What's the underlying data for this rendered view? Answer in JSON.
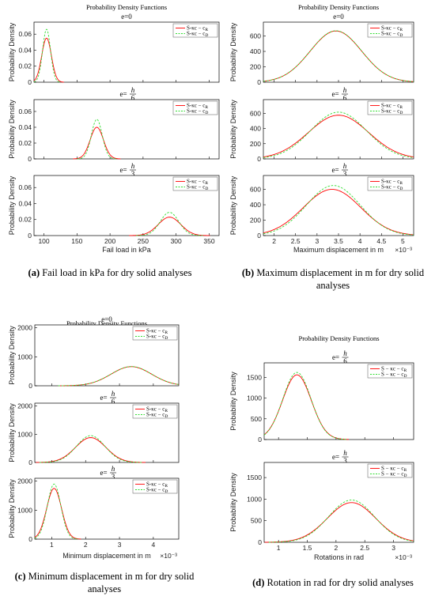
{
  "captions": [
    {
      "id": "a",
      "letter": "(a)",
      "text": "Fail load in kPa for dry solid analyses"
    },
    {
      "id": "b",
      "letter": "(b)",
      "text": "Maximum displacement in m for dry solid analyses"
    },
    {
      "id": "c",
      "letter": "(c)",
      "text": "Minimum displacement in m for dry solid analyses"
    },
    {
      "id": "d",
      "letter": "(d)",
      "text": "Rotation in rad for dry solid analyses"
    }
  ],
  "colors": {
    "series_solid": "#ff0000",
    "series_dashed": "#33dd33",
    "axis": "#000000"
  },
  "chart_data": [
    {
      "id": "a",
      "type": "line",
      "title": "Probability Density Functions",
      "xlabel": "Fail load in kPa",
      "ylabel": "Probability Density",
      "x_multiplier": "",
      "xlim": [
        85,
        365
      ],
      "xticks": [
        {
          "v": 100,
          "label": "100"
        },
        {
          "v": 150,
          "label": "150"
        },
        {
          "v": 200,
          "label": "200"
        },
        {
          "v": 250,
          "label": "250"
        },
        {
          "v": 300,
          "label": "300"
        },
        {
          "v": 350,
          "label": "350"
        }
      ],
      "legend": [
        "S-κc − c_R",
        "S-κc − c_D"
      ],
      "subplots": [
        {
          "subtitle": "e=0",
          "ylim": [
            0,
            0.075
          ],
          "yticks": [
            0,
            0.02,
            0.04,
            0.06
          ],
          "ytick_labels": [
            "0",
            "0.02",
            "0.04",
            "0.06"
          ],
          "series": [
            {
              "style": "solid",
              "gaussian": {
                "mean": 104,
                "sd": 7.3,
                "peak": 0.055
              }
            },
            {
              "style": "dashed",
              "gaussian": {
                "mean": 104,
                "sd": 6.0,
                "peak": 0.066
              }
            }
          ]
        },
        {
          "subtitle": "e=h/6",
          "ylim": [
            0,
            0.075
          ],
          "yticks": [
            0,
            0.02,
            0.04,
            0.06
          ],
          "ytick_labels": [
            "0",
            "0.02",
            "0.04",
            "0.06"
          ],
          "series": [
            {
              "style": "solid",
              "gaussian": {
                "mean": 180,
                "sd": 10,
                "peak": 0.04
              }
            },
            {
              "style": "dashed",
              "gaussian": {
                "mean": 180,
                "sd": 8.2,
                "peak": 0.05
              }
            }
          ]
        },
        {
          "subtitle": "e=h/3",
          "ylim": [
            0,
            0.075
          ],
          "yticks": [
            0,
            0.02,
            0.04,
            0.06
          ],
          "ytick_labels": [
            "0",
            "0.02",
            "0.04",
            "0.06"
          ],
          "series": [
            {
              "style": "solid",
              "gaussian": {
                "mean": 290,
                "sd": 17,
                "peak": 0.023
              }
            },
            {
              "style": "dashed",
              "gaussian": {
                "mean": 290,
                "sd": 14,
                "peak": 0.029
              }
            }
          ]
        }
      ]
    },
    {
      "id": "b",
      "type": "line",
      "title": "Probability Density Functions",
      "xlabel": "Maximum displacement in m",
      "ylabel": "Probability Density",
      "x_multiplier": "×10⁻³",
      "xlim": [
        1.75,
        5.25
      ],
      "xticks": [
        {
          "v": 2,
          "label": "2"
        },
        {
          "v": 2.5,
          "label": "2.5"
        },
        {
          "v": 3,
          "label": "3"
        },
        {
          "v": 3.5,
          "label": "3.5"
        },
        {
          "v": 4,
          "label": "4"
        },
        {
          "v": 4.5,
          "label": "4.5"
        },
        {
          "v": 5,
          "label": "5"
        }
      ],
      "legend": [
        "S-κc − c_R",
        "S-κc − c_D"
      ],
      "subplots": [
        {
          "subtitle": "e=0",
          "ylim": [
            0,
            780
          ],
          "yticks": [
            0,
            200,
            400,
            600
          ],
          "ytick_labels": [
            "0",
            "200",
            "400",
            "600"
          ],
          "series": [
            {
              "style": "solid",
              "gaussian": {
                "mean": 3.44,
                "sd": 0.6,
                "peak": 665
              }
            },
            {
              "style": "dashed",
              "gaussian": {
                "mean": 3.44,
                "sd": 0.6,
                "peak": 668
              }
            }
          ]
        },
        {
          "subtitle": "e=h/6",
          "ylim": [
            0,
            780
          ],
          "yticks": [
            0,
            200,
            400,
            600
          ],
          "ytick_labels": [
            "0",
            "200",
            "400",
            "600"
          ],
          "series": [
            {
              "style": "solid",
              "gaussian": {
                "mean": 3.5,
                "sd": 0.7,
                "peak": 575
              }
            },
            {
              "style": "dashed",
              "gaussian": {
                "mean": 3.5,
                "sd": 0.65,
                "peak": 615
              }
            }
          ]
        },
        {
          "subtitle": "e=h/3",
          "ylim": [
            0,
            780
          ],
          "yticks": [
            0,
            200,
            400,
            600
          ],
          "ytick_labels": [
            "0",
            "200",
            "400",
            "600"
          ],
          "series": [
            {
              "style": "solid",
              "gaussian": {
                "mean": 3.35,
                "sd": 0.67,
                "peak": 600
              }
            },
            {
              "style": "dashed",
              "gaussian": {
                "mean": 3.38,
                "sd": 0.63,
                "peak": 650
              }
            }
          ]
        }
      ]
    },
    {
      "id": "c",
      "type": "line",
      "title": "Probability Density Functions",
      "xlabel": "Minimum displacement in m",
      "ylabel": "Probability Density",
      "x_multiplier": "×10⁻³",
      "xlim": [
        0.5,
        4.75
      ],
      "xticks": [
        {
          "v": 1,
          "label": "1"
        },
        {
          "v": 2,
          "label": "2"
        },
        {
          "v": 3,
          "label": "3"
        },
        {
          "v": 4,
          "label": "4"
        }
      ],
      "legend": [
        "S-κc − c_R",
        "S-κc − c_D"
      ],
      "subplots": [
        {
          "subtitle": "e=0",
          "ylim": [
            0,
            2100
          ],
          "yticks": [
            0,
            1000,
            2000
          ],
          "ytick_labels": [
            "0",
            "1000",
            "2000"
          ],
          "series": [
            {
              "style": "solid",
              "gaussian": {
                "mean": 3.35,
                "sd": 0.6,
                "peak": 660
              }
            },
            {
              "style": "dashed",
              "gaussian": {
                "mean": 3.35,
                "sd": 0.6,
                "peak": 665
              }
            }
          ]
        },
        {
          "subtitle": "e=h/6",
          "ylim": [
            0,
            2100
          ],
          "yticks": [
            0,
            1000,
            2000
          ],
          "ytick_labels": [
            "0",
            "1000",
            "2000"
          ],
          "series": [
            {
              "style": "solid",
              "gaussian": {
                "mean": 2.15,
                "sd": 0.45,
                "peak": 880
              }
            },
            {
              "style": "dashed",
              "gaussian": {
                "mean": 2.15,
                "sd": 0.42,
                "peak": 950
              }
            }
          ]
        },
        {
          "subtitle": "e=h/3",
          "ylim": [
            0,
            2100
          ],
          "yticks": [
            0,
            1000,
            2000
          ],
          "ytick_labels": [
            "0",
            "1000",
            "2000"
          ],
          "series": [
            {
              "style": "solid",
              "gaussian": {
                "mean": 1.07,
                "sd": 0.22,
                "peak": 1750
              }
            },
            {
              "style": "dashed",
              "gaussian": {
                "mean": 1.07,
                "sd": 0.2,
                "peak": 1900
              }
            }
          ]
        }
      ]
    },
    {
      "id": "d",
      "type": "line",
      "title": "Probability Density Functions",
      "xlabel": "Rotations in rad",
      "ylabel": "Probability Density",
      "x_multiplier": "×10⁻³",
      "xlim": [
        0.75,
        3.35
      ],
      "xticks": [
        {
          "v": 1,
          "label": "1"
        },
        {
          "v": 1.5,
          "label": "1.5"
        },
        {
          "v": 2,
          "label": "2"
        },
        {
          "v": 2.5,
          "label": "2.5"
        },
        {
          "v": 3,
          "label": "3"
        }
      ],
      "legend": [
        "S − κc − c_R",
        "S − κc − c_D"
      ],
      "subplots": [
        {
          "subtitle": "e=h/6",
          "ylim": [
            0,
            1850
          ],
          "yticks": [
            0,
            500,
            1000,
            1500
          ],
          "ytick_labels": [
            "0",
            "500",
            "1000",
            "1500"
          ],
          "series": [
            {
              "style": "solid",
              "gaussian": {
                "mean": 1.32,
                "sd": 0.25,
                "peak": 1560
              }
            },
            {
              "style": "dashed",
              "gaussian": {
                "mean": 1.32,
                "sd": 0.245,
                "peak": 1620
              }
            }
          ]
        },
        {
          "subtitle": "e=h/3",
          "ylim": [
            0,
            1850
          ],
          "yticks": [
            0,
            500,
            1000,
            1500
          ],
          "ytick_labels": [
            "0",
            "500",
            "1000",
            "1500"
          ],
          "series": [
            {
              "style": "solid",
              "gaussian": {
                "mean": 2.27,
                "sd": 0.42,
                "peak": 920
              }
            },
            {
              "style": "dashed",
              "gaussian": {
                "mean": 2.27,
                "sd": 0.4,
                "peak": 980
              }
            }
          ]
        }
      ]
    }
  ]
}
